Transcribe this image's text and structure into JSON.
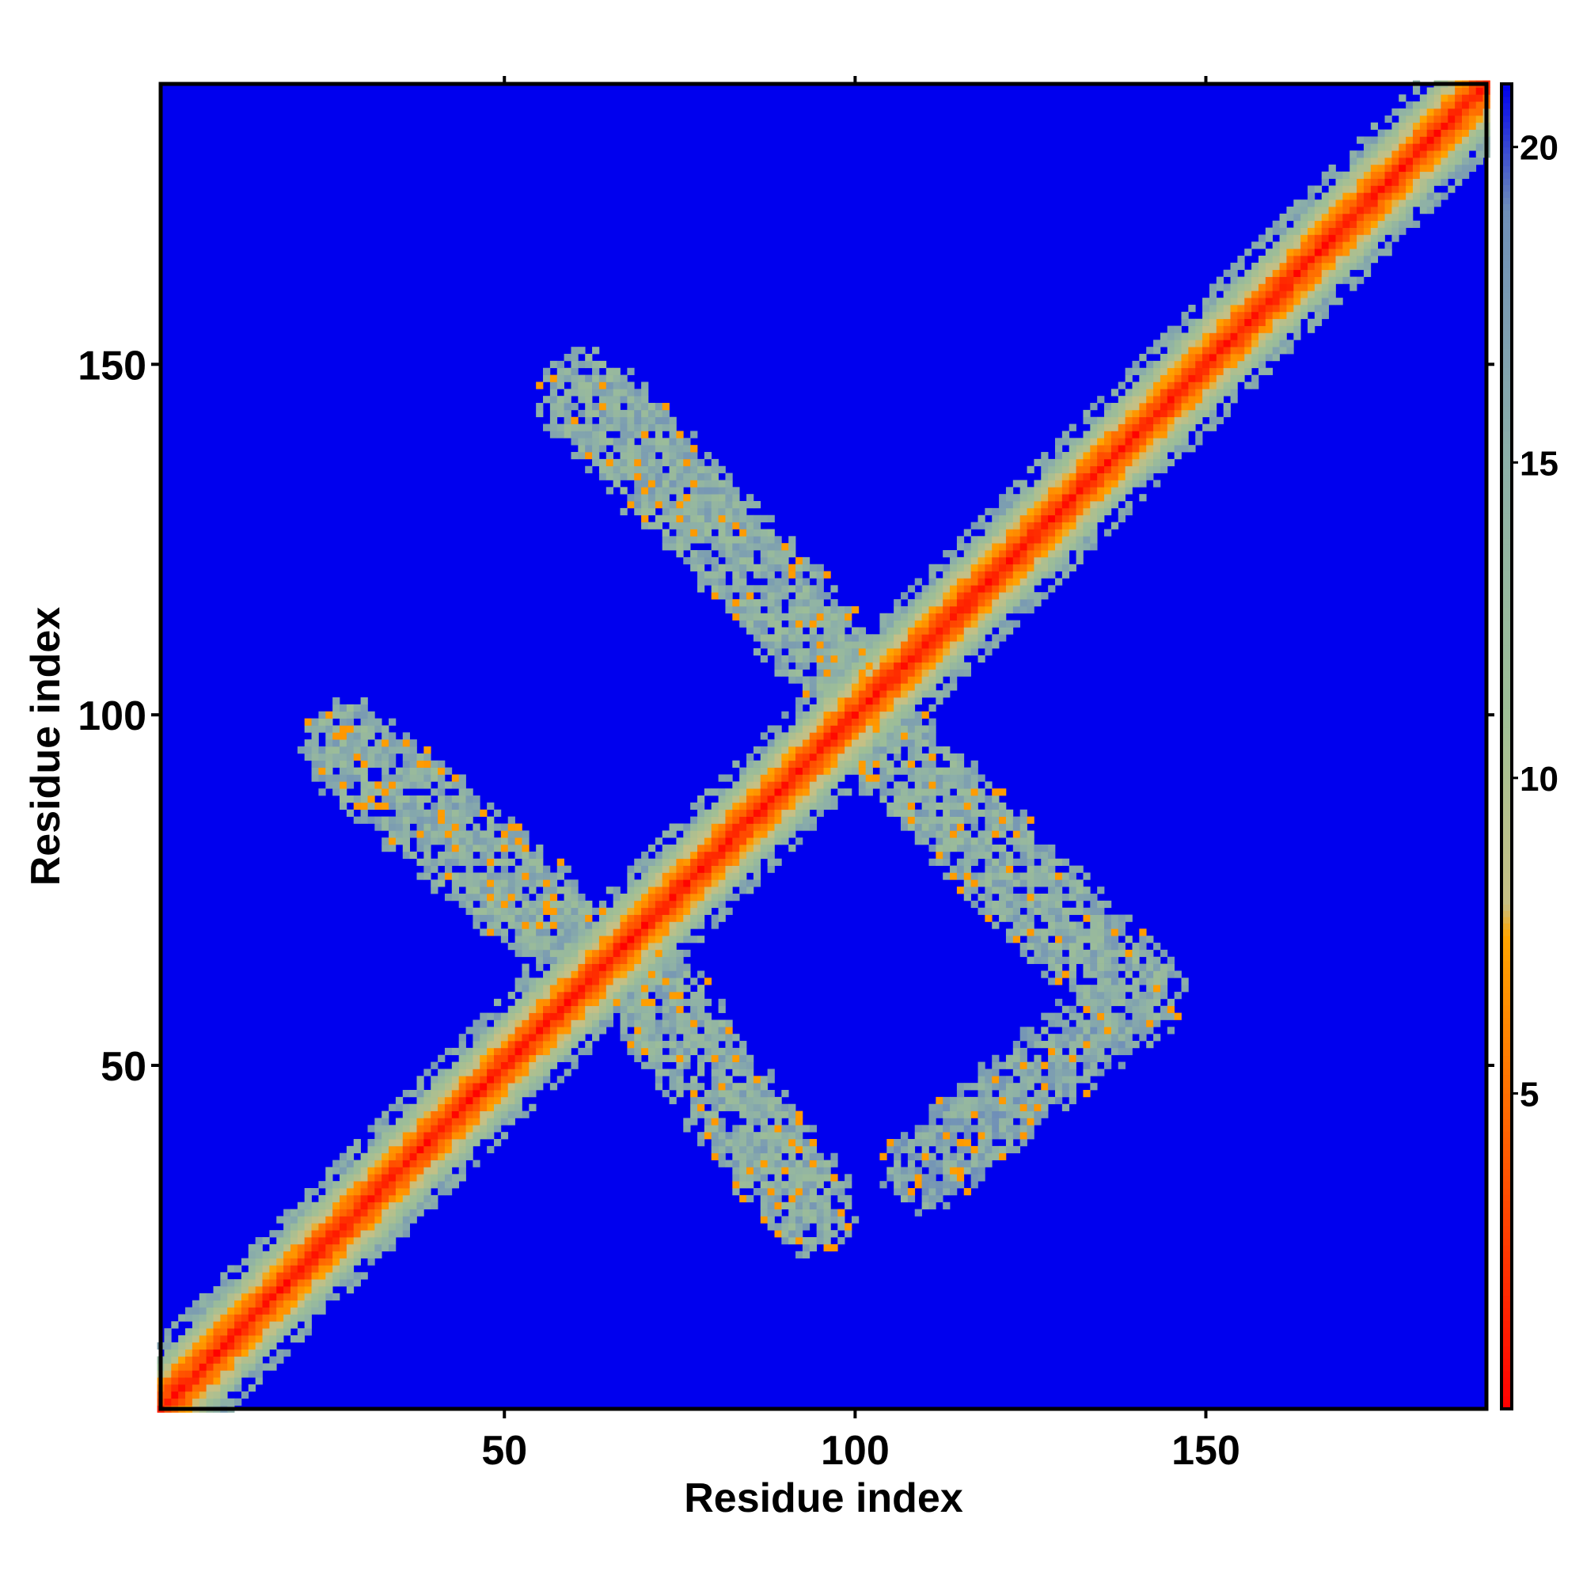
{
  "chart_data": {
    "type": "heatmap",
    "title": "",
    "xlabel": "Residue index",
    "ylabel": "Residue index",
    "xlim": [
      1,
      190
    ],
    "ylim": [
      1,
      190
    ],
    "x_ticks": [
      50,
      100,
      150
    ],
    "y_ticks": [
      50,
      100,
      150
    ],
    "x_tick_labels": [
      "50",
      "100",
      "150"
    ],
    "y_tick_labels": [
      "50",
      "100",
      "150"
    ],
    "grid": false,
    "colorbar": {
      "range": [
        0,
        21
      ],
      "ticks": [
        5,
        10,
        15,
        20
      ],
      "tick_labels": [
        "5",
        "10",
        "15",
        "20"
      ],
      "stops": [
        {
          "value": 0,
          "color": "#ff0000"
        },
        {
          "value": 4,
          "color": "#ff5a00"
        },
        {
          "value": 7.5,
          "color": "#ffa500"
        },
        {
          "value": 8,
          "color": "#c8c084"
        },
        {
          "value": 11,
          "color": "#9fbf96"
        },
        {
          "value": 15,
          "color": "#8db0a8"
        },
        {
          "value": 19,
          "color": "#6f8fb8"
        },
        {
          "value": 21,
          "color": "#0000ee"
        }
      ]
    },
    "background_value": 21,
    "features": [
      {
        "kind": "diagonal",
        "from": 1,
        "to": 190,
        "core_value": 1,
        "band_halfwidth": 6
      },
      {
        "kind": "anti_diagonal_band",
        "x_start": 62,
        "y_start": 145,
        "x_end": 100,
        "y_end": 105,
        "halfwidth": 6,
        "value": 13
      },
      {
        "kind": "anti_diagonal_band",
        "x_start": 28,
        "y_start": 95,
        "x_end": 57,
        "y_end": 70,
        "halfwidth": 6,
        "value": 13
      },
      {
        "kind": "anti_diagonal_band",
        "x_start": 70,
        "y_start": 62,
        "x_end": 93,
        "y_end": 30,
        "halfwidth": 6,
        "value": 13
      },
      {
        "kind": "anti_diagonal_band",
        "x_start": 105,
        "y_start": 95,
        "x_end": 140,
        "y_end": 60,
        "halfwidth": 6,
        "value": 13
      },
      {
        "kind": "anti_diagonal_band",
        "x_start": 110,
        "y_start": 35,
        "x_end": 140,
        "y_end": 60,
        "halfwidth": 5,
        "value": 14
      }
    ]
  }
}
